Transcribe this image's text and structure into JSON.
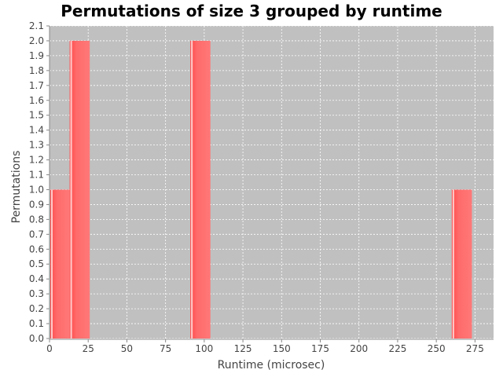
{
  "chart_data": {
    "type": "bar",
    "title": "Permutations of size 3 grouped by runtime",
    "xlabel": "Runtime (microsec)",
    "ylabel": "Permutations",
    "xlim": [
      0,
      287
    ],
    "ylim": [
      0,
      2.1
    ],
    "x_ticks": [
      "0",
      "25",
      "50",
      "75",
      "100",
      "125",
      "150",
      "175",
      "200",
      "225",
      "250",
      "275"
    ],
    "y_ticks": [
      "0.0",
      "0.1",
      "0.2",
      "0.3",
      "0.4",
      "0.5",
      "0.6",
      "0.7",
      "0.8",
      "0.9",
      "1.0",
      "1.1",
      "1.2",
      "1.3",
      "1.4",
      "1.5",
      "1.6",
      "1.7",
      "1.8",
      "1.9",
      "2.0",
      "2.1"
    ],
    "bins": [
      {
        "start": 0.5,
        "end": 13,
        "value": 1
      },
      {
        "start": 13,
        "end": 26,
        "value": 2
      },
      {
        "start": 91,
        "end": 104,
        "value": 2
      },
      {
        "start": 260,
        "end": 273,
        "value": 1
      }
    ],
    "grid": true,
    "colors": {
      "plot_background": "#c0c0c0",
      "bar": "#ff5555",
      "bar_highlight": "#ffcccc",
      "gridline": "#ffffff"
    }
  }
}
